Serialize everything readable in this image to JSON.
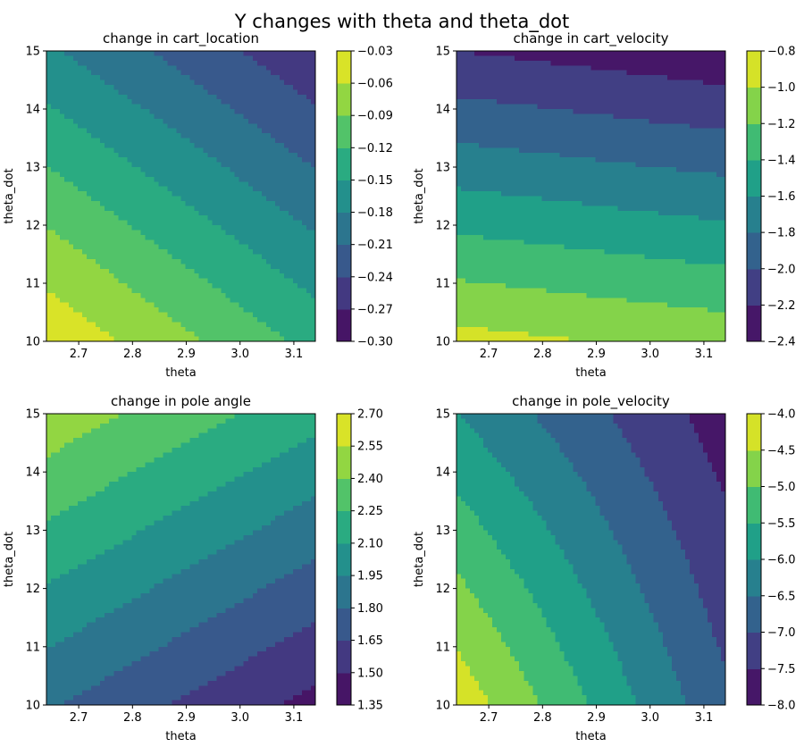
{
  "figure": {
    "title": "Y changes with theta and theta_dot"
  },
  "colormap": {
    "name": "viridis",
    "stops": [
      "#440154",
      "#482878",
      "#3e4989",
      "#31688e",
      "#26828e",
      "#1f9e89",
      "#35b779",
      "#6ece58",
      "#b5de2b",
      "#fde725"
    ]
  },
  "chart_data": [
    {
      "type": "contourf",
      "title": "change in cart_location",
      "xlabel": "theta",
      "ylabel": "theta_dot",
      "xlim": [
        2.64,
        3.14
      ],
      "ylim": [
        10,
        15
      ],
      "xticks": [
        "2.7",
        "2.8",
        "2.9",
        "3.0",
        "3.1"
      ],
      "yticks": [
        "10",
        "11",
        "12",
        "13",
        "14",
        "15"
      ],
      "zlim": [
        -0.3,
        -0.03
      ],
      "colorbar_ticks": [
        "-0.03",
        "-0.06",
        "-0.09",
        "-0.12",
        "-0.15",
        "-0.18",
        "-0.21",
        "-0.24",
        "-0.27",
        "-0.30"
      ],
      "corner_values": {
        "theta_min_theta_dot_min": -0.035,
        "theta_max_theta_dot_min": -0.13,
        "theta_min_theta_dot_max": -0.175,
        "theta_max_theta_dot_max": -0.265
      }
    },
    {
      "type": "contourf",
      "title": "change in cart_velocity",
      "xlabel": "theta",
      "ylabel": "theta_dot",
      "xlim": [
        2.64,
        3.14
      ],
      "ylim": [
        10,
        15
      ],
      "xticks": [
        "2.7",
        "2.8",
        "2.9",
        "3.0",
        "3.1"
      ],
      "yticks": [
        "10",
        "11",
        "12",
        "13",
        "14",
        "15"
      ],
      "zlim": [
        -2.4,
        -0.8
      ],
      "colorbar_ticks": [
        "-0.8",
        "-1.0",
        "-1.2",
        "-1.4",
        "-1.6",
        "-1.8",
        "-2.0",
        "-2.2",
        "-2.4"
      ],
      "corner_values": {
        "theta_min_theta_dot_min": -0.93,
        "theta_max_theta_dot_min": -1.07,
        "theta_min_theta_dot_max": -2.2,
        "theta_max_theta_dot_max": -2.35
      }
    },
    {
      "type": "contourf",
      "title": "change in pole angle",
      "xlabel": "theta",
      "ylabel": "theta_dot",
      "xlim": [
        2.64,
        3.14
      ],
      "ylim": [
        10,
        15
      ],
      "xticks": [
        "2.7",
        "2.8",
        "2.9",
        "3.0",
        "3.1"
      ],
      "yticks": [
        "10",
        "11",
        "12",
        "13",
        "14",
        "15"
      ],
      "zlim": [
        1.35,
        2.7
      ],
      "colorbar_ticks": [
        "2.70",
        "2.55",
        "2.40",
        "2.25",
        "2.10",
        "1.95",
        "1.80",
        "1.65",
        "1.50",
        "1.35"
      ],
      "corner_values": {
        "theta_min_theta_dot_min": 1.82,
        "theta_max_theta_dot_min": 1.45,
        "theta_min_theta_dot_max": 2.5,
        "theta_max_theta_dot_max": 2.15
      }
    },
    {
      "type": "contourf",
      "title": "change in pole_velocity",
      "xlabel": "theta",
      "ylabel": "theta_dot",
      "xlim": [
        2.64,
        3.14
      ],
      "ylim": [
        10,
        15
      ],
      "xticks": [
        "2.7",
        "2.8",
        "2.9",
        "3.0",
        "3.1"
      ],
      "yticks": [
        "10",
        "11",
        "12",
        "13",
        "14",
        "15"
      ],
      "zlim": [
        -8.0,
        -4.0
      ],
      "colorbar_ticks": [
        "-4.0",
        "-4.5",
        "-5.0",
        "-5.5",
        "-6.0",
        "-6.5",
        "-7.0",
        "-7.5",
        "-8.0"
      ],
      "corner_values": {
        "theta_min_theta_dot_min": -4.15,
        "theta_max_theta_dot_min": -6.9,
        "theta_min_theta_dot_max": -6.0,
        "theta_max_theta_dot_max": -7.75
      }
    }
  ]
}
